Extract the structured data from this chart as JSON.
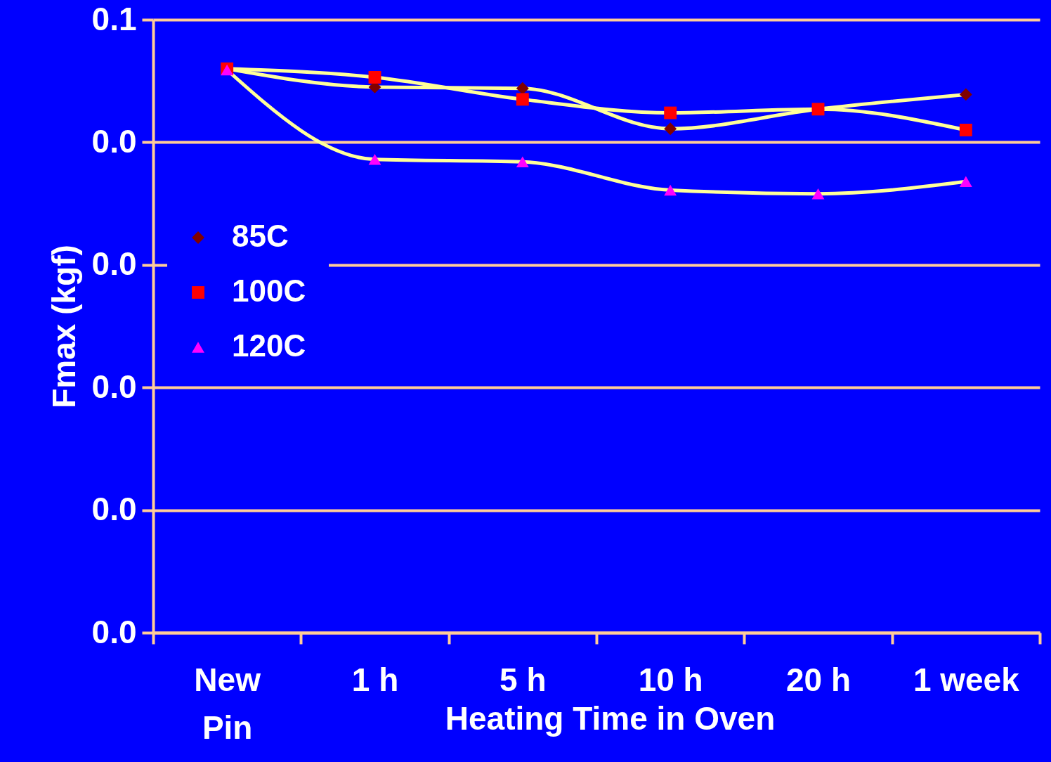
{
  "chart_data": {
    "type": "line",
    "xlabel": "Heating Time in Oven",
    "ylabel": "Fmax (kgf)",
    "categories": [
      "New\nPin",
      "1 h",
      "5 h",
      "10 h",
      "20 h",
      "1 week"
    ],
    "series": [
      {
        "name": "85C",
        "color": "#ffff99",
        "colors": [
          "#800000",
          "#800000",
          "#800000",
          "#800000",
          "#800000",
          "#800000"
        ],
        "marker": "diamond",
        "values": [
          0.046,
          0.0445,
          0.0444,
          0.0411,
          0.0427,
          0.0439
        ]
      },
      {
        "name": "100C",
        "color": "#ffff99",
        "colors": [
          "#ff0000",
          "#ff0000",
          "#ff0000",
          "#ff0000",
          "#ff0000",
          "#ff0000"
        ],
        "marker": "square",
        "values": [
          0.046,
          0.0453,
          0.0435,
          0.0424,
          0.0427,
          0.041
        ]
      },
      {
        "name": "120C",
        "color": "#ffff99",
        "colors": [
          "#ff00ff",
          "#ff00ff",
          "#ff00ff",
          "#ff00ff",
          "#ff00ff",
          "#ff00ff"
        ],
        "marker": "triangle",
        "values": [
          0.0459,
          0.0386,
          0.0384,
          0.0361,
          0.0358,
          0.0368
        ]
      }
    ],
    "ylim": [
      0,
      0.05
    ],
    "yticks": [
      {
        "value": 0,
        "label": "0.0"
      },
      {
        "value": 0.01,
        "label": "0.0"
      },
      {
        "value": 0.02,
        "label": "0.0"
      },
      {
        "value": 0.03,
        "label": "0.0"
      },
      {
        "value": 0.04,
        "label": "0.0"
      },
      {
        "value": 0.05,
        "label": "0.1"
      }
    ],
    "grid": "y",
    "legend": "left"
  }
}
